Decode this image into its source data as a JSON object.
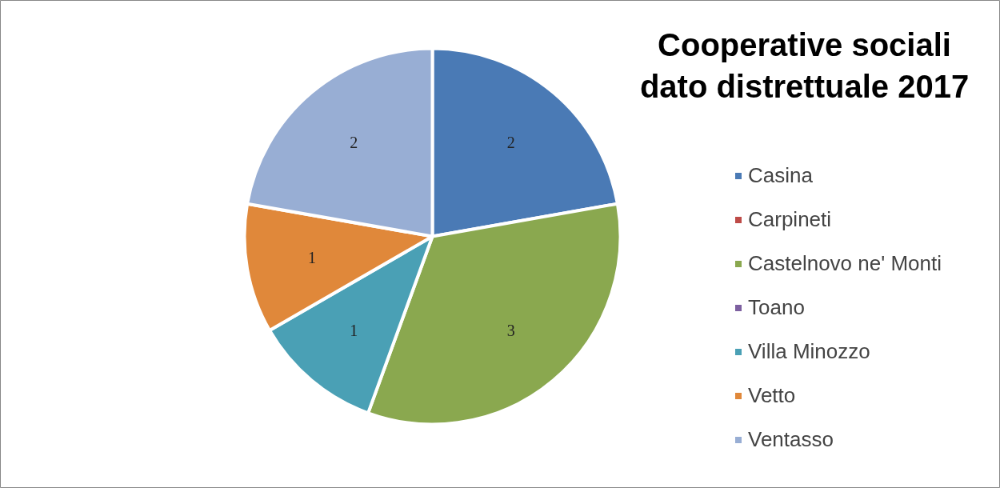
{
  "chart_data": {
    "type": "pie",
    "title": "Cooperative sociali dato distrettuale 2017",
    "categories": [
      "Casina",
      "Carpineti",
      "Castelnovo ne' Monti",
      "Toano",
      "Villa Minozzo",
      "Vetto",
      "Ventasso"
    ],
    "values": [
      2,
      0,
      3,
      0,
      1,
      1,
      2
    ],
    "colors": [
      "#4a7ab5",
      "#be4b48",
      "#8aa84f",
      "#7d60a0",
      "#4aa0b5",
      "#e0883a",
      "#98aed4"
    ],
    "value_labels": [
      "2",
      null,
      "3",
      null,
      "1",
      "1",
      "2"
    ],
    "legend": "right"
  }
}
